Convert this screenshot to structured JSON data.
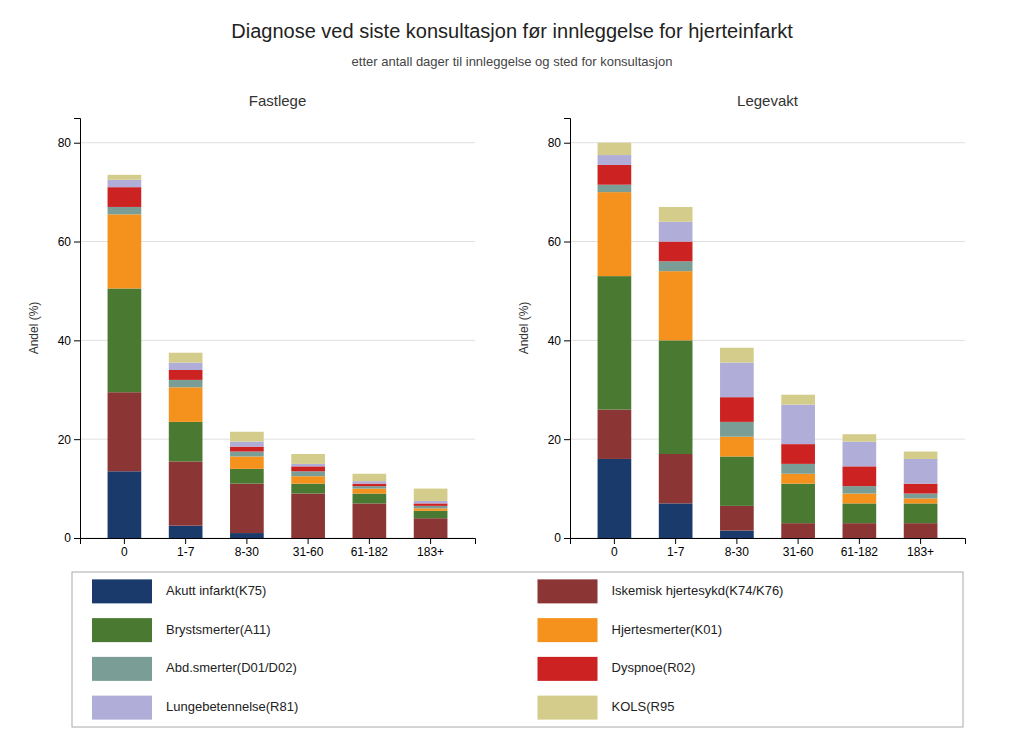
{
  "title": "Diagnose ved siste konsultasjon før innleggelse for hjerteinfarkt",
  "subtitle": "etter antall dager til innleggelse og sted for konsultasjon",
  "chart_data": [
    {
      "type": "bar",
      "title": "Fastlege",
      "ylabel": "Andel (%)",
      "stacked": true,
      "grid": true,
      "legend": "bottom",
      "categories": [
        "0",
        "1-7",
        "8-30",
        "31-60",
        "61-182",
        "183+"
      ],
      "ylim": [
        0,
        85
      ],
      "yticks": [
        0,
        20,
        40,
        60,
        80
      ],
      "series": [
        {
          "name": "Akutt infarkt(K75)",
          "color": "#1a3a6b",
          "values": [
            13.5,
            2.5,
            1.0,
            0.0,
            0.0,
            0.0
          ]
        },
        {
          "name": "Iskemisk hjertesykd(K74/K76)",
          "color": "#8b3535",
          "values": [
            16.0,
            13.0,
            10.0,
            9.0,
            7.0,
            4.0
          ]
        },
        {
          "name": "Brystsmerter(A11)",
          "color": "#4a7a32",
          "values": [
            21.0,
            8.0,
            3.0,
            2.0,
            2.0,
            1.5
          ]
        },
        {
          "name": "Hjertesmerter(K01)",
          "color": "#f5921e",
          "values": [
            15.0,
            7.0,
            2.5,
            1.5,
            1.0,
            0.5
          ]
        },
        {
          "name": "Abd.smerter(D01/D02)",
          "color": "#7a9e96",
          "values": [
            1.5,
            1.5,
            1.0,
            1.0,
            0.5,
            0.5
          ]
        },
        {
          "name": "Dyspnoe(R02)",
          "color": "#cc2222",
          "values": [
            4.0,
            2.0,
            1.0,
            1.0,
            0.5,
            0.5
          ]
        },
        {
          "name": "Lungebetennelse(R81)",
          "color": "#b0aed8",
          "values": [
            1.5,
            1.5,
            1.0,
            0.5,
            0.5,
            0.5
          ]
        },
        {
          "name": "KOLS(R95",
          "color": "#d4cc8a",
          "values": [
            1.0,
            2.0,
            2.0,
            2.0,
            1.5,
            2.5
          ]
        }
      ]
    },
    {
      "type": "bar",
      "title": "Legevakt",
      "ylabel": "Andel (%)",
      "stacked": true,
      "grid": true,
      "categories": [
        "0",
        "1-7",
        "8-30",
        "31-60",
        "61-182",
        "183+"
      ],
      "ylim": [
        0,
        85
      ],
      "yticks": [
        0,
        20,
        40,
        60,
        80
      ],
      "series": [
        {
          "name": "Akutt infarkt(K75)",
          "color": "#1a3a6b",
          "values": [
            16.0,
            7.0,
            1.5,
            0.0,
            0.0,
            0.0
          ]
        },
        {
          "name": "Iskemisk hjertesykd(K74/K76)",
          "color": "#8b3535",
          "values": [
            10.0,
            10.0,
            5.0,
            3.0,
            3.0,
            3.0
          ]
        },
        {
          "name": "Brystsmerter(A11)",
          "color": "#4a7a32",
          "values": [
            27.0,
            23.0,
            10.0,
            8.0,
            4.0,
            4.0
          ]
        },
        {
          "name": "Hjertesmerter(K01)",
          "color": "#f5921e",
          "values": [
            17.0,
            14.0,
            4.0,
            2.0,
            2.0,
            1.0
          ]
        },
        {
          "name": "Abd.smerter(D01/D02)",
          "color": "#7a9e96",
          "values": [
            1.5,
            2.0,
            3.0,
            2.0,
            1.5,
            1.0
          ]
        },
        {
          "name": "Dyspnoe(R02)",
          "color": "#cc2222",
          "values": [
            4.0,
            4.0,
            5.0,
            4.0,
            4.0,
            2.0
          ]
        },
        {
          "name": "Lungebetennelse(R81)",
          "color": "#b0aed8",
          "values": [
            2.0,
            4.0,
            7.0,
            8.0,
            5.0,
            5.0
          ]
        },
        {
          "name": "KOLS(R95",
          "color": "#d4cc8a",
          "values": [
            2.5,
            3.0,
            3.0,
            2.0,
            1.5,
            1.5
          ]
        }
      ]
    }
  ]
}
